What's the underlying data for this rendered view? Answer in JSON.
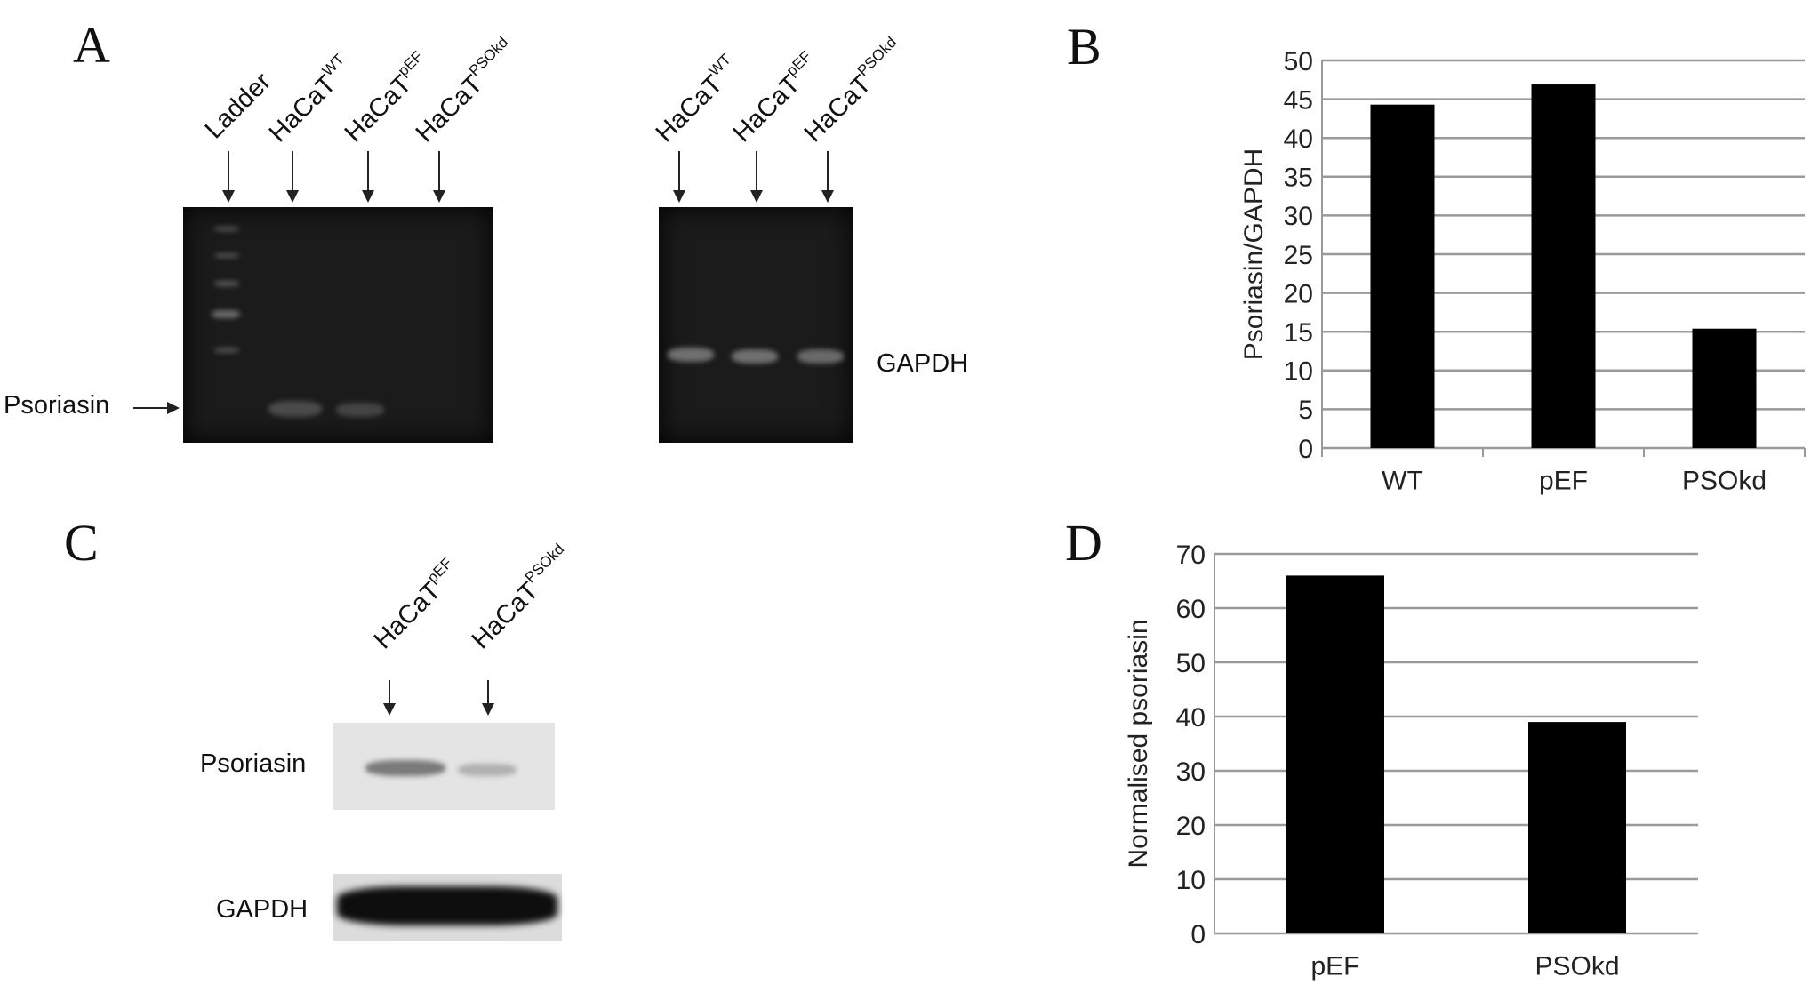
{
  "panels": {
    "a": "A",
    "b": "B",
    "c": "C",
    "d": "D"
  },
  "panel_a": {
    "gel1_lanes": [
      {
        "base": "Ladder",
        "sup": ""
      },
      {
        "base": "HaCaT",
        "sup": "WT"
      },
      {
        "base": "HaCaT",
        "sup": "pEF"
      },
      {
        "base": "HaCaT",
        "sup": "PSOkd"
      }
    ],
    "gel2_lanes": [
      {
        "base": "HaCaT",
        "sup": "WT"
      },
      {
        "base": "HaCaT",
        "sup": "pEF"
      },
      {
        "base": "HaCaT",
        "sup": "PSOkd"
      }
    ],
    "psoriasin_label": "Psoriasin",
    "gapdh_label": "GAPDH"
  },
  "panel_c": {
    "lanes": [
      {
        "base": "HaCaT",
        "sup": "pEF"
      },
      {
        "base": "HaCaT",
        "sup": "PSOkd"
      }
    ],
    "psoriasin_label": "Psoriasin",
    "gapdh_label": "GAPDH"
  },
  "chart_data": [
    {
      "id": "B",
      "type": "bar",
      "categories": [
        "WT",
        "pEF",
        "PSOkd"
      ],
      "values": [
        44.3,
        46.9,
        15.4
      ],
      "ylabel": "Psoriasin/GAPDH",
      "xlabel": "",
      "ylim": [
        0,
        50
      ],
      "yticks": [
        0,
        5,
        10,
        15,
        20,
        25,
        30,
        35,
        40,
        45,
        50
      ],
      "grid": true,
      "bar_color": "#000000"
    },
    {
      "id": "D",
      "type": "bar",
      "categories": [
        "pEF",
        "PSOkd"
      ],
      "values": [
        66,
        39
      ],
      "ylabel": "Normalised psoriasin",
      "xlabel": "",
      "ylim": [
        0,
        70
      ],
      "yticks": [
        0,
        10,
        20,
        30,
        40,
        50,
        60,
        70
      ],
      "grid": true,
      "bar_color": "#000000"
    }
  ]
}
